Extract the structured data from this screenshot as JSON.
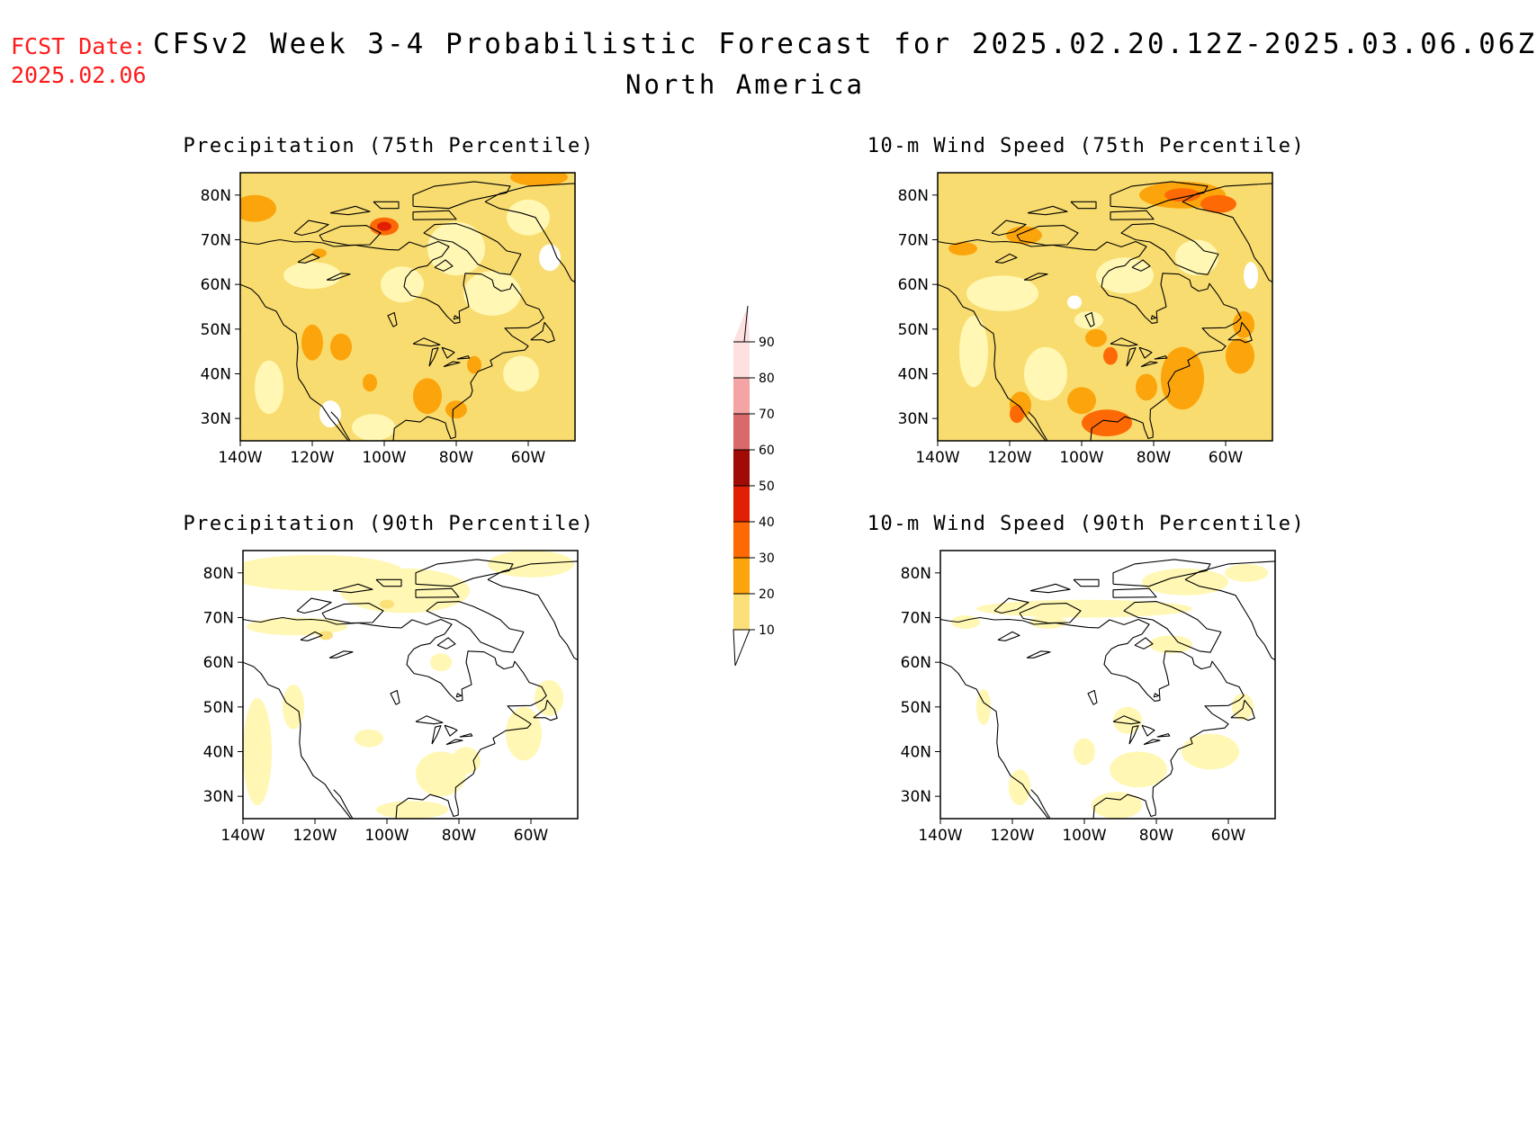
{
  "header": {
    "fcst_label": "FCST Date:",
    "fcst_date": "2025.02.06",
    "title": "CFSv2 Week 3-4 Probabilistic Forecast for 2025.02.20.12Z-2025.03.06.06Z",
    "region": "North America"
  },
  "panels": [
    {
      "title": "Precipitation (75th Percentile)",
      "base_fill": "#f9dc6f"
    },
    {
      "title": "10-m Wind Speed (75th Percentile)",
      "base_fill": "#f9dc6f"
    },
    {
      "title": "Precipitation (90th Percentile)",
      "base_fill": "#ffffff"
    },
    {
      "title": "10-m Wind Speed (90th Percentile)",
      "base_fill": "#ffffff"
    }
  ],
  "axes": {
    "lat_labels": [
      "80N",
      "70N",
      "60N",
      "50N",
      "40N",
      "30N"
    ],
    "lon_labels": [
      "140W",
      "120W",
      "100W",
      "80W",
      "60W"
    ]
  },
  "colorbar": {
    "levels": [
      "10",
      "20",
      "30",
      "40",
      "50",
      "60",
      "70",
      "80",
      "90"
    ],
    "colors": [
      "#fff7b3",
      "#fbe07a",
      "#fba40b",
      "#fd6a05",
      "#e01f05",
      "#a00c05",
      "#da6a6a",
      "#f4a4a4",
      "#fde0e0"
    ]
  }
}
